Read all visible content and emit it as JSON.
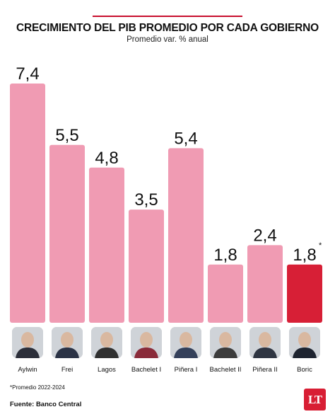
{
  "header": {
    "title": "CRECIMIENTO DEL PIB PROMEDIO POR CADA GOBIERNO",
    "subtitle": "Promedio var. % anual"
  },
  "chart_data": {
    "type": "bar",
    "title": "CRECIMIENTO DEL PIB PROMEDIO POR CADA GOBIERNO",
    "subtitle": "Promedio var. % anual",
    "categories": [
      "Aylwin",
      "Frei",
      "Lagos",
      "Bachelet I",
      "Piñera I",
      "Bachelet II",
      "Piñera II",
      "Boric"
    ],
    "values": [
      7.4,
      5.5,
      4.8,
      3.5,
      5.4,
      1.8,
      2.4,
      1.8
    ],
    "value_labels": [
      "7,4",
      "5,5",
      "4,8",
      "3,5",
      "5,4",
      "1,8",
      "2,4",
      "1,8"
    ],
    "annotations": [
      "",
      "",
      "",
      "",
      "",
      "",
      "",
      "*"
    ],
    "ylim": [
      0,
      7.4
    ],
    "grid": false,
    "colors": {
      "default": "#f09bb3",
      "highlight": "#d71f36"
    },
    "highlight_index": 7
  },
  "portraits": [
    "Aylwin",
    "Frei",
    "Lagos",
    "Bachelet I",
    "Piñera I",
    "Bachelet II",
    "Piñera II",
    "Boric"
  ],
  "footer": {
    "footnote": "*Promedio 2022-2024",
    "source": "Fuente: Banco Central",
    "logo_text": "LT"
  }
}
